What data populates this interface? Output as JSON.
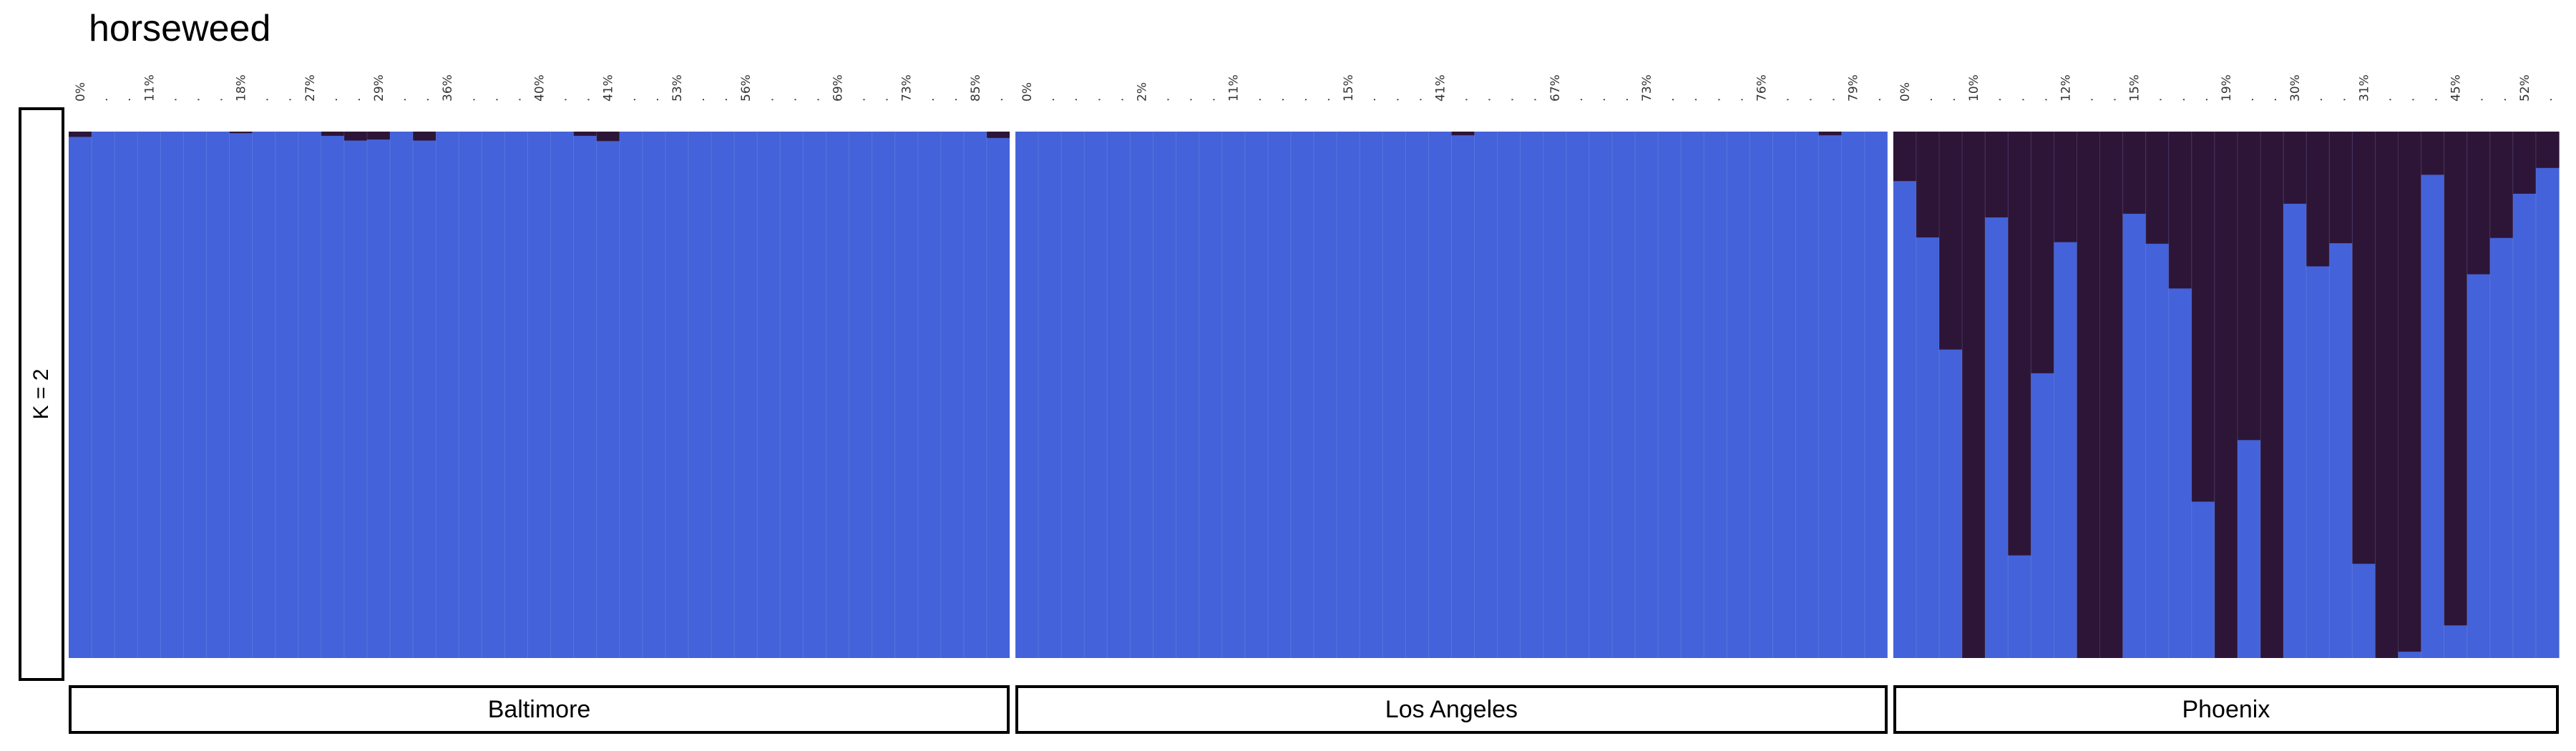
{
  "chart_data": {
    "type": "bar",
    "stacked": true,
    "title": "horseweed",
    "k_label": "K = 2",
    "ylim": [
      0,
      1
    ],
    "colors": {
      "cluster1": "#4462d9",
      "cluster2": "#2d1537"
    },
    "populations": [
      {
        "name": "Baltimore",
        "x_ticks": [
          "0%",
          "11%",
          "18%",
          "27%",
          "29%",
          "36%",
          "40%",
          "41%",
          "53%",
          "56%",
          "69%",
          "73%",
          "85%"
        ],
        "cluster2": [
          0.01,
          0,
          0,
          0,
          0,
          0,
          0,
          0.003,
          0,
          0,
          0,
          0.008,
          0.017,
          0.015,
          0,
          0.017,
          0,
          0,
          0,
          0,
          0,
          0,
          0.008,
          0.018,
          0,
          0,
          0,
          0,
          0,
          0,
          0,
          0,
          0,
          0,
          0,
          0,
          0,
          0,
          0,
          0,
          0.012
        ]
      },
      {
        "name": "Los Angeles",
        "x_ticks": [
          "0%",
          "2%",
          "11%",
          "15%",
          "41%",
          "67%",
          "73%",
          "76%",
          "79%"
        ],
        "cluster2": [
          0,
          0,
          0,
          0,
          0,
          0,
          0,
          0,
          0,
          0,
          0,
          0,
          0,
          0,
          0,
          0,
          0,
          0,
          0,
          0.007,
          0,
          0,
          0,
          0,
          0,
          0,
          0,
          0,
          0,
          0,
          0,
          0,
          0,
          0,
          0,
          0.007,
          0,
          0
        ]
      },
      {
        "name": "Phoenix",
        "x_ticks": [
          "0%",
          "10%",
          "12%",
          "15%",
          "19%",
          "30%",
          "31%",
          "45%",
          "52%"
        ],
        "cluster2": [
          0.094,
          0.201,
          0.414,
          1.0,
          0.163,
          0.805,
          0.459,
          0.21,
          1.0,
          1.0,
          0.156,
          0.213,
          0.298,
          0.703,
          1.0,
          0.586,
          1.0,
          0.137,
          0.256,
          0.212,
          0.821,
          1.0,
          0.988,
          0.082,
          0.938,
          0.271,
          0.202,
          0.118,
          0.069
        ]
      }
    ]
  }
}
